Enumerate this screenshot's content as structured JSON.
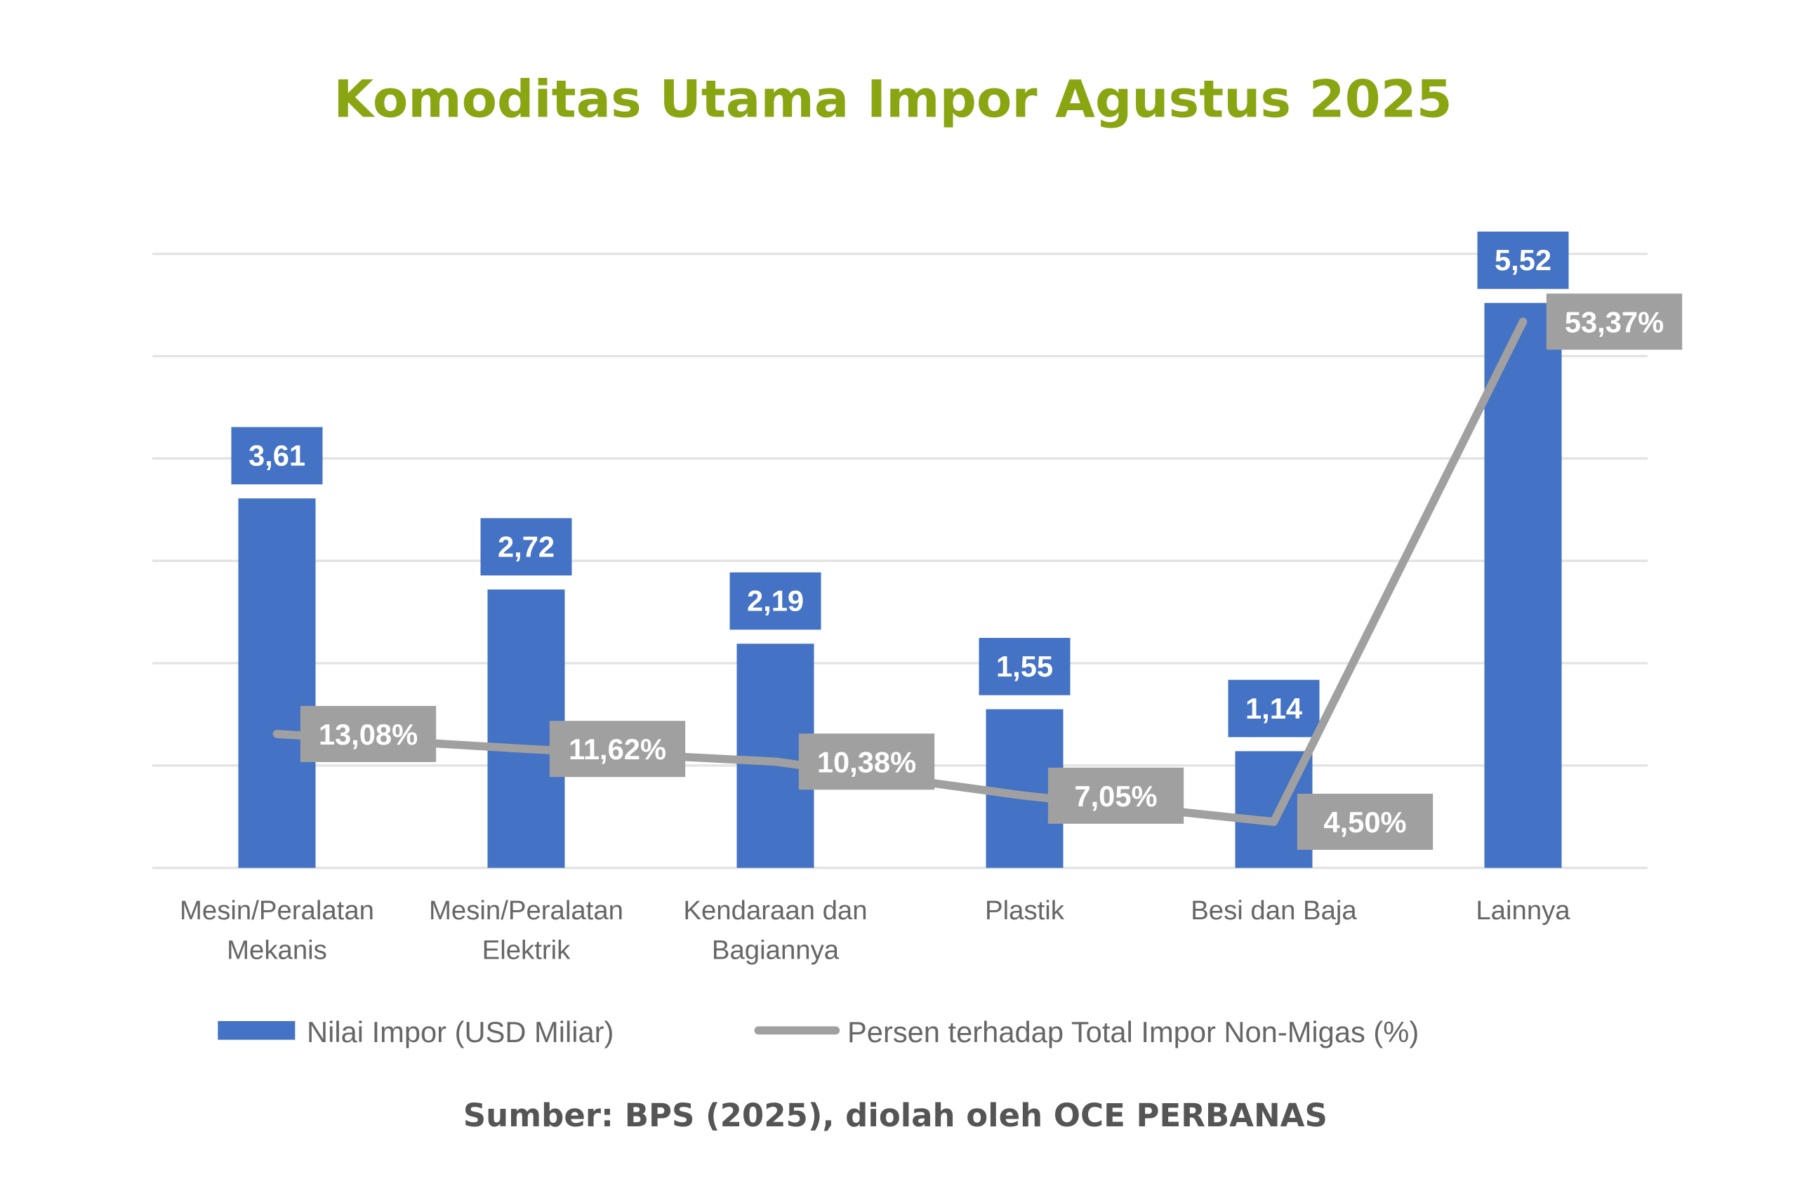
{
  "chart_data": {
    "type": "bar",
    "title": "Komoditas Utama Impor Agustus 2025",
    "categories": [
      [
        "Mesin/Peralatan",
        "Mekanis"
      ],
      [
        "Mesin/Peralatan",
        "Elektrik"
      ],
      [
        "Kendaraan dan",
        "Bagiannya"
      ],
      [
        "Plastik"
      ],
      [
        "Besi dan Baja"
      ],
      [
        "Lainnya"
      ]
    ],
    "series": [
      {
        "name": "Nilai Impor (USD Miliar)",
        "type": "bar",
        "color": "#4472c4",
        "values": [
          3.61,
          2.72,
          2.19,
          1.55,
          1.14,
          5.52
        ],
        "labels": [
          "3,61",
          "2,72",
          "2,19",
          "1,55",
          "1,14",
          "5,52"
        ]
      },
      {
        "name": "Persen terhadap Total Impor Non-Migas (%)",
        "type": "line",
        "color": "#a0a0a0",
        "values": [
          13.08,
          11.62,
          10.38,
          7.05,
          4.5,
          53.37
        ],
        "labels": [
          "13,08%",
          "11,62%",
          "10,38%",
          "7,05%",
          "4,50%",
          "53,37%"
        ]
      }
    ],
    "ylim": [
      0,
      6
    ],
    "y2lim": [
      0,
      60
    ],
    "grid": true,
    "legend": "bottom",
    "source": "Sumber: BPS (2025), diolah oleh OCE PERBANAS"
  }
}
